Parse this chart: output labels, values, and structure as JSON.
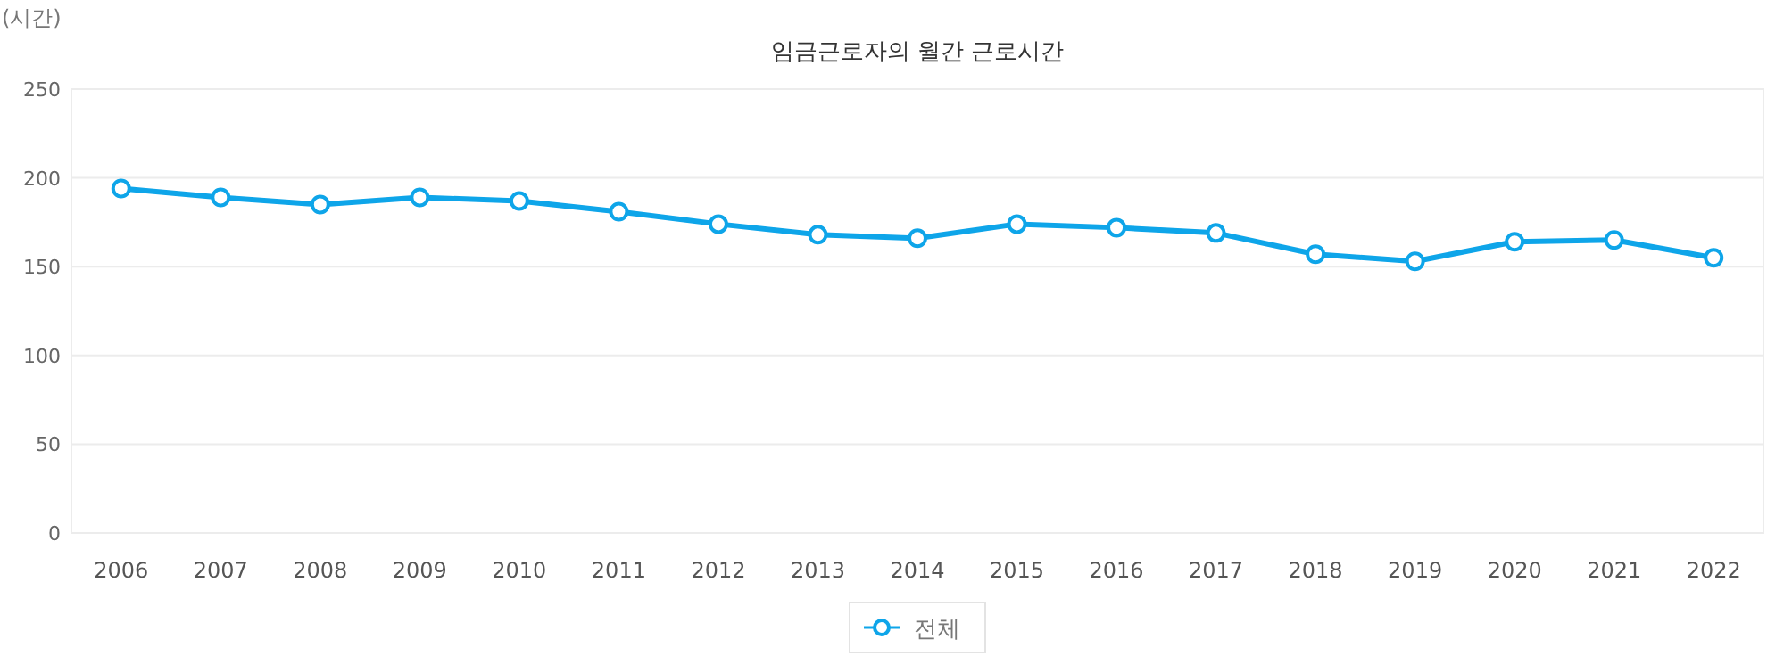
{
  "chart_data": {
    "type": "line",
    "title": "임금근로자의 월간 근로시간",
    "ylabel": "(시간)",
    "categories": [
      "2006",
      "2007",
      "2008",
      "2009",
      "2010",
      "2011",
      "2012",
      "2013",
      "2014",
      "2015",
      "2016",
      "2017",
      "2018",
      "2019",
      "2020",
      "2021",
      "2022"
    ],
    "series": [
      {
        "name": "전체",
        "color": "#0ea5e9",
        "values": [
          194,
          189,
          185,
          189,
          187,
          181,
          174,
          168,
          166,
          174,
          172,
          169,
          157,
          153,
          164,
          165,
          155
        ]
      }
    ],
    "ylim": [
      0,
      250
    ],
    "yticks": [
      0,
      50,
      100,
      150,
      200,
      250
    ],
    "grid": "y",
    "legend": "bottom",
    "marker": "circle",
    "line_style": "solid"
  }
}
